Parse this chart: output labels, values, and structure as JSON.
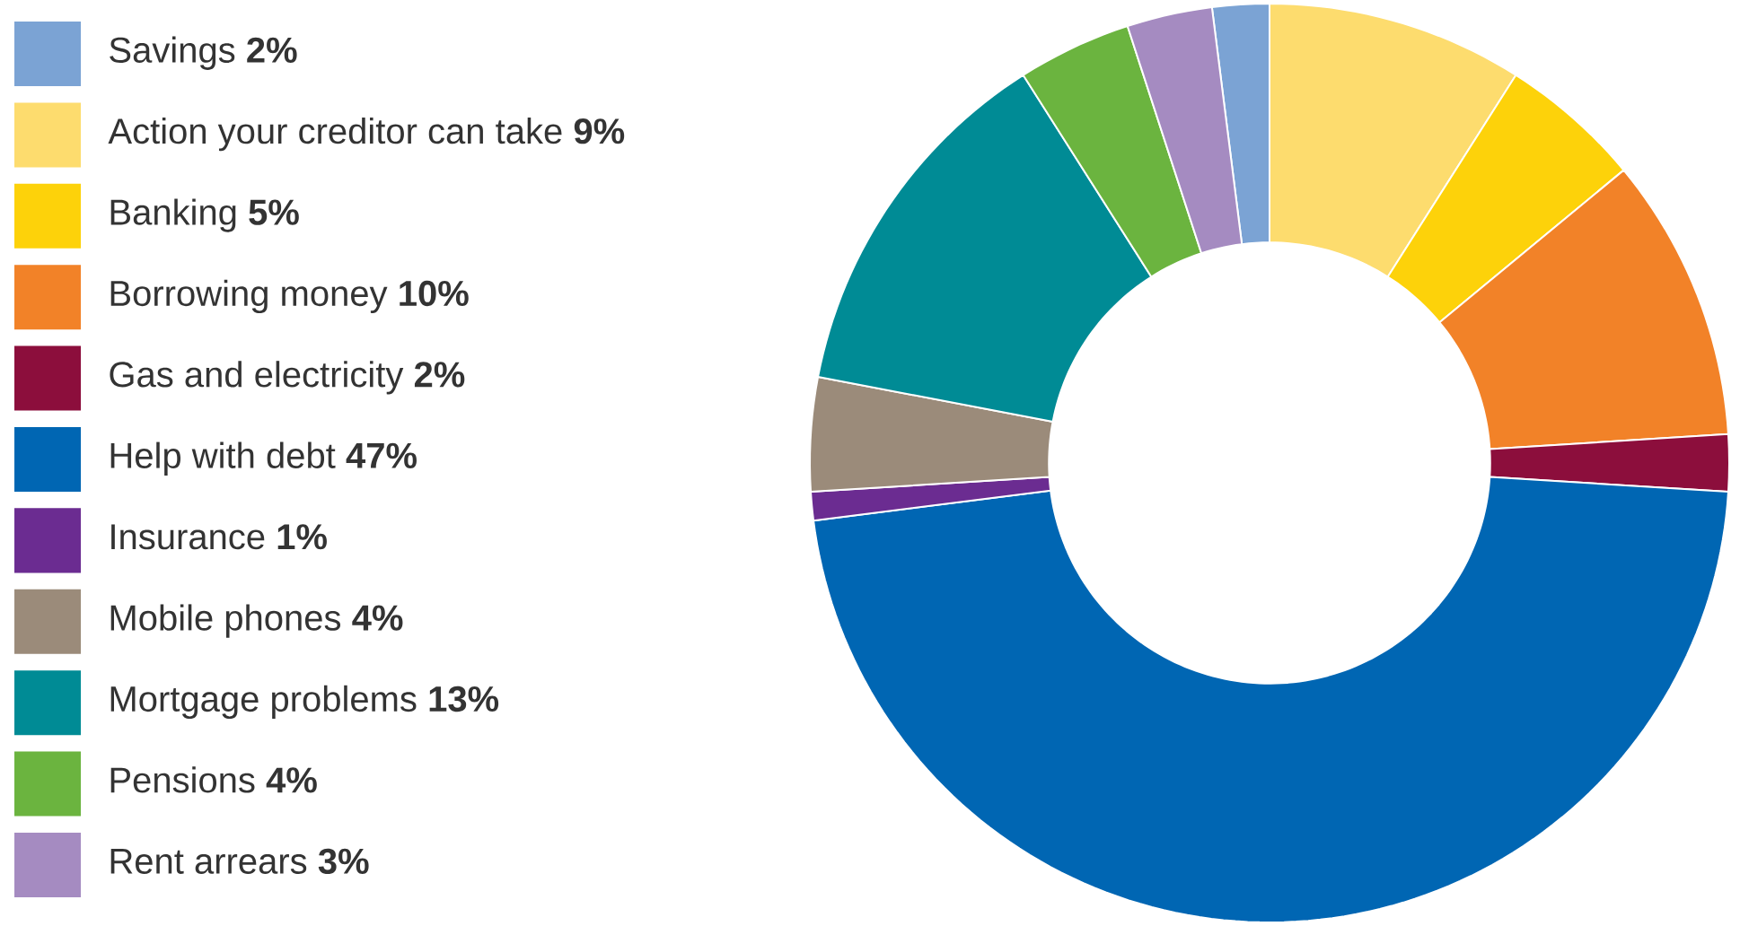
{
  "chart_data": {
    "type": "donut",
    "categories": [
      "Savings",
      "Action your creditor can take",
      "Banking",
      "Borrowing money",
      "Gas and electricity",
      "Help with debt",
      "Insurance",
      "Mobile phones",
      "Mortgage problems",
      "Pensions",
      "Rent arrears"
    ],
    "values": [
      2,
      9,
      5,
      10,
      2,
      47,
      1,
      4,
      13,
      4,
      3
    ],
    "value_labels": [
      "2%",
      "9%",
      "5%",
      "10%",
      "2%",
      "47%",
      "1%",
      "4%",
      "13%",
      "4%",
      "3%"
    ],
    "colors": [
      "#7ba3d4",
      "#fddc6e",
      "#fdd20a",
      "#f28228",
      "#8c0e3c",
      "#0066b3",
      "#6b2c91",
      "#9b8b7a",
      "#008b95",
      "#6bb43f",
      "#a58bc1"
    ],
    "legend": "left"
  }
}
